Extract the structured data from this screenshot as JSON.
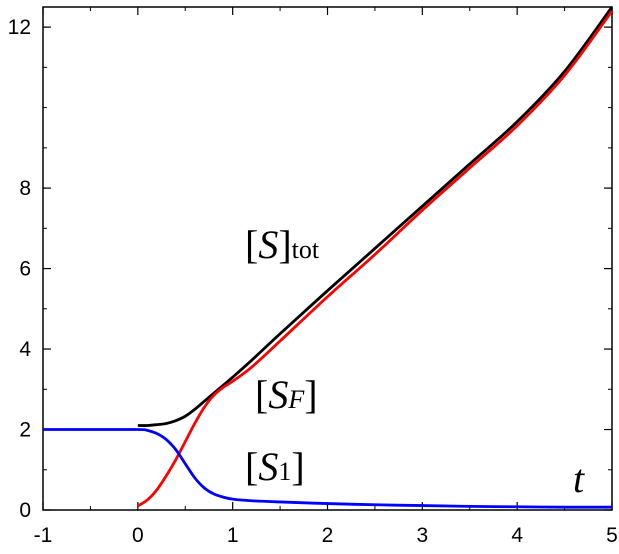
{
  "chart_data": {
    "type": "line",
    "xlabel": "t",
    "ylabel": "",
    "xlim": [
      -1,
      5
    ],
    "ylim": [
      0,
      12.5
    ],
    "x_ticks": [
      -1,
      0,
      1,
      2,
      3,
      4,
      5
    ],
    "y_ticks": [
      0,
      2,
      4,
      6,
      8,
      12
    ],
    "grid": false,
    "series": [
      {
        "name": "[S]tot",
        "color": "#000000",
        "x": [
          0.0,
          0.1,
          0.2,
          0.3,
          0.4,
          0.5,
          0.6,
          0.7,
          0.8,
          0.9,
          1.0,
          1.2,
          1.5,
          2.0,
          2.5,
          3.0,
          3.5,
          4.0,
          4.5,
          5.0
        ],
        "y": [
          2.1,
          2.1,
          2.12,
          2.15,
          2.22,
          2.33,
          2.5,
          2.7,
          2.9,
          3.1,
          3.3,
          3.72,
          4.38,
          5.45,
          6.5,
          7.55,
          8.6,
          9.65,
          10.9,
          12.5
        ]
      },
      {
        "name": "[SF]",
        "color": "#ff0000",
        "x": [
          0.0,
          0.1,
          0.2,
          0.3,
          0.4,
          0.5,
          0.6,
          0.7,
          0.8,
          0.9,
          1.0,
          1.2,
          1.5,
          2.0,
          2.5,
          3.0,
          3.5,
          4.0,
          4.5,
          5.0
        ],
        "y": [
          0.1,
          0.25,
          0.5,
          0.85,
          1.25,
          1.7,
          2.15,
          2.55,
          2.85,
          3.05,
          3.2,
          3.55,
          4.2,
          5.3,
          6.35,
          7.45,
          8.5,
          9.55,
          10.8,
          12.4
        ]
      },
      {
        "name": "[S1]",
        "color": "#0000ff",
        "x": [
          -1.0,
          -0.5,
          0.0,
          0.1,
          0.2,
          0.3,
          0.4,
          0.5,
          0.6,
          0.7,
          0.8,
          0.9,
          1.0,
          1.2,
          1.5,
          2.0,
          2.5,
          3.0,
          3.5,
          4.0,
          4.5,
          5.0
        ],
        "y": [
          2.0,
          2.0,
          2.0,
          1.98,
          1.9,
          1.75,
          1.5,
          1.15,
          0.8,
          0.55,
          0.4,
          0.32,
          0.27,
          0.23,
          0.2,
          0.16,
          0.13,
          0.11,
          0.09,
          0.08,
          0.07,
          0.07
        ]
      }
    ],
    "annotations": [
      {
        "text": "t",
        "x": 4.65,
        "y": 0.55
      },
      {
        "text_base": "S",
        "text_sub": "tot",
        "x": 1.1,
        "y": 5.6
      },
      {
        "text_base": "S",
        "text_sub": "F",
        "x": 1.2,
        "y": 2.6
      },
      {
        "text_base": "S",
        "text_sub": "1",
        "x": 1.1,
        "y": 0.55
      }
    ]
  }
}
